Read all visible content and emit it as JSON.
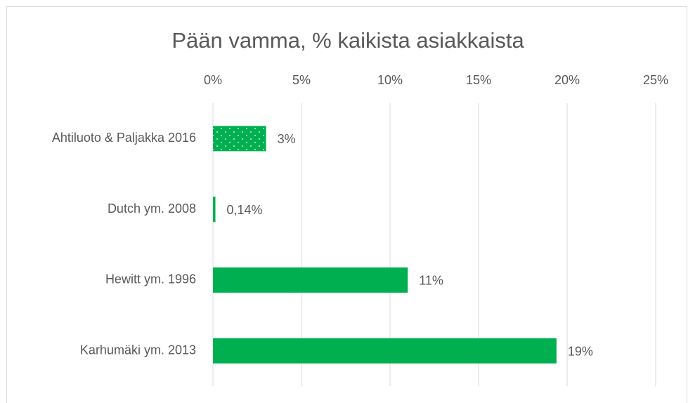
{
  "chart_data": {
    "type": "bar",
    "orientation": "horizontal",
    "title": "Pään vamma, % kaikista asiakkaista",
    "categories": [
      "Ahtiluoto & Paljakka 2016",
      "Dutch ym. 2008",
      "Hewitt ym. 1996",
      "Karhumäki ym. 2013"
    ],
    "values": [
      3,
      0.14,
      11,
      19.4
    ],
    "value_labels": [
      "3%",
      "0,14%",
      "11%",
      "19%"
    ],
    "patterned": [
      true,
      false,
      false,
      false
    ],
    "color": "#00b050",
    "xlim": [
      0,
      25
    ],
    "xticks": [
      {
        "value": 0,
        "label": "0%"
      },
      {
        "value": 5,
        "label": "5%"
      },
      {
        "value": 10,
        "label": "10%"
      },
      {
        "value": 15,
        "label": "15%"
      },
      {
        "value": 20,
        "label": "20%"
      },
      {
        "value": 25,
        "label": "25%"
      }
    ],
    "grid": true
  }
}
